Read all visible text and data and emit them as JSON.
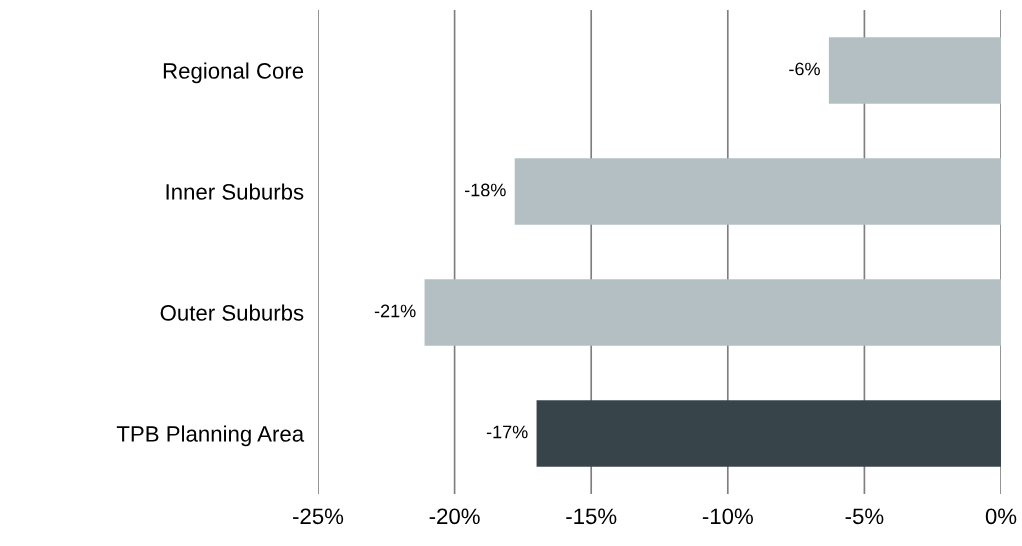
{
  "chart_data": {
    "type": "bar",
    "orientation": "horizontal",
    "categories": [
      "Regional Core",
      "Inner Suburbs",
      "Outer Suburbs",
      "TPB Planning Area"
    ],
    "values": [
      -6.3,
      -17.8,
      -21.1,
      -17.0
    ],
    "colors": [
      "#b4bfc3",
      "#b4bfc3",
      "#b4bfc3",
      "#37454b"
    ],
    "value_labels": [
      "-6%",
      "-18%",
      "-21%",
      "-17%"
    ],
    "xlim": [
      -25,
      0
    ],
    "xticks": [
      {
        "value": -25,
        "label": "-25%"
      },
      {
        "value": -20,
        "label": "-20%"
      },
      {
        "value": -15,
        "label": "-15%"
      },
      {
        "value": -10,
        "label": "-10%"
      },
      {
        "value": -5,
        "label": "-5%"
      },
      {
        "value": 0,
        "label": "0%"
      }
    ],
    "grid": "x",
    "legend": false
  }
}
